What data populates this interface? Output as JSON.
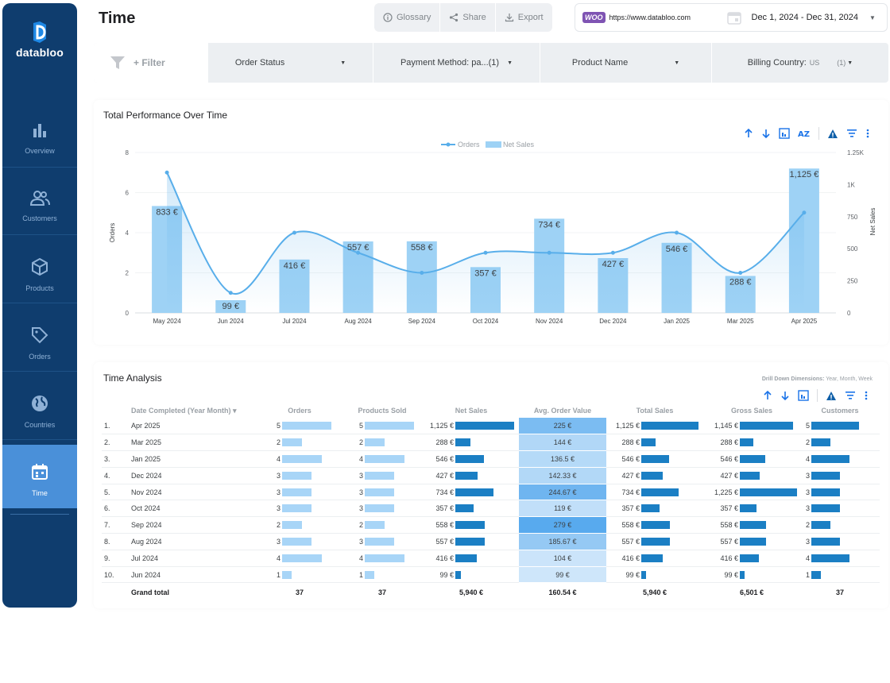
{
  "brand": {
    "name": "databloo"
  },
  "nav": [
    {
      "label": "Overview",
      "icon": "bar-chart-icon",
      "active": false
    },
    {
      "label": "Customers",
      "icon": "users-icon",
      "active": false
    },
    {
      "label": "Products",
      "icon": "box-icon",
      "active": false
    },
    {
      "label": "Orders",
      "icon": "tag-icon",
      "active": false
    },
    {
      "label": "Countries",
      "icon": "globe-icon",
      "active": false
    },
    {
      "label": "Time",
      "icon": "calendar-icon",
      "active": true
    }
  ],
  "header": {
    "title": "Time",
    "glossary": "Glossary",
    "share": "Share",
    "export": "Export",
    "store_badge": "WOO",
    "url": "https://www.databloo.com",
    "date_range": "Dec 1, 2024 - Dec 31, 2024"
  },
  "filters": {
    "add_label": "+ Filter",
    "order_status": "Order Status",
    "payment_method": "Payment Method: pa...(1)",
    "product_name": "Product Name",
    "billing_country": "Billing Country:",
    "billing_country_value": "US",
    "billing_country_count": "(1)"
  },
  "performance": {
    "title": "Total Performance Over Time",
    "legend": {
      "orders": "Orders",
      "net_sales": "Net Sales"
    }
  },
  "chart_data": {
    "type": "bar",
    "title": "Total Performance Over Time",
    "categories": [
      "May 2024",
      "Jun 2024",
      "Jul 2024",
      "Aug 2024",
      "Sep 2024",
      "Oct 2024",
      "Nov 2024",
      "Dec 2024",
      "Jan 2025",
      "Mar 2025",
      "Apr 2025"
    ],
    "series": [
      {
        "name": "Net Sales",
        "type": "bar",
        "axis": "right",
        "values": [
          833,
          99,
          416,
          557,
          558,
          357,
          734,
          427,
          546,
          288,
          1125
        ],
        "labels": [
          "833 €",
          "99 €",
          "416 €",
          "557 €",
          "558 €",
          "357 €",
          "734 €",
          "427 €",
          "546 €",
          "288 €",
          "1,125 €"
        ]
      },
      {
        "name": "Orders",
        "type": "line",
        "axis": "left",
        "values": [
          7,
          1,
          4,
          3,
          2,
          3,
          3,
          3,
          4,
          2,
          5
        ]
      }
    ],
    "ylabel": "Orders",
    "y2label": "Net Sales",
    "ylim": [
      0,
      8
    ],
    "y2lim": [
      0,
      1250
    ],
    "yticks": [
      "0",
      "2",
      "4",
      "6",
      "8"
    ],
    "y2ticks": [
      "0",
      "250",
      "500",
      "750",
      "1K",
      "1.25K"
    ],
    "legend": "top-center",
    "colors": {
      "bars": "#9ed2f5",
      "line": "#58aeea"
    }
  },
  "analysis": {
    "title": "Time Analysis",
    "drill_label": "Drill Down Dimensions:",
    "drill_value": "Year, Month, Week",
    "columns": [
      "Date Completed (Year Month)",
      "Orders",
      "Products Sold",
      "Net Sales",
      "Avg. Order Value",
      "Total Sales",
      "Gross Sales",
      "Customers"
    ],
    "sort_marker": "▾",
    "rows": [
      {
        "idx": "1.",
        "date": "Apr 2025",
        "orders": 5,
        "products": 5,
        "net": 1125,
        "net_label": "1,125 €",
        "aov": 225,
        "aov_label": "225 €",
        "total": 1125,
        "total_label": "1,125 €",
        "gross": 1145,
        "gross_label": "1,145 €",
        "customers": 5
      },
      {
        "idx": "2.",
        "date": "Mar 2025",
        "orders": 2,
        "products": 2,
        "net": 288,
        "net_label": "288 €",
        "aov": 144,
        "aov_label": "144 €",
        "total": 288,
        "total_label": "288 €",
        "gross": 288,
        "gross_label": "288 €",
        "customers": 2
      },
      {
        "idx": "3.",
        "date": "Jan 2025",
        "orders": 4,
        "products": 4,
        "net": 546,
        "net_label": "546 €",
        "aov": 136.5,
        "aov_label": "136.5 €",
        "total": 546,
        "total_label": "546 €",
        "gross": 546,
        "gross_label": "546 €",
        "customers": 4
      },
      {
        "idx": "4.",
        "date": "Dec 2024",
        "orders": 3,
        "products": 3,
        "net": 427,
        "net_label": "427 €",
        "aov": 142.33,
        "aov_label": "142.33 €",
        "total": 427,
        "total_label": "427 €",
        "gross": 427,
        "gross_label": "427 €",
        "customers": 3
      },
      {
        "idx": "5.",
        "date": "Nov 2024",
        "orders": 3,
        "products": 3,
        "net": 734,
        "net_label": "734 €",
        "aov": 244.67,
        "aov_label": "244.67 €",
        "total": 734,
        "total_label": "734 €",
        "gross": 1225,
        "gross_label": "1,225 €",
        "customers": 3
      },
      {
        "idx": "6.",
        "date": "Oct 2024",
        "orders": 3,
        "products": 3,
        "net": 357,
        "net_label": "357 €",
        "aov": 119,
        "aov_label": "119 €",
        "total": 357,
        "total_label": "357 €",
        "gross": 357,
        "gross_label": "357 €",
        "customers": 3
      },
      {
        "idx": "7.",
        "date": "Sep 2024",
        "orders": 2,
        "products": 2,
        "net": 558,
        "net_label": "558 €",
        "aov": 279,
        "aov_label": "279 €",
        "total": 558,
        "total_label": "558 €",
        "gross": 558,
        "gross_label": "558 €",
        "customers": 2
      },
      {
        "idx": "8.",
        "date": "Aug 2024",
        "orders": 3,
        "products": 3,
        "net": 557,
        "net_label": "557 €",
        "aov": 185.67,
        "aov_label": "185.67 €",
        "total": 557,
        "total_label": "557 €",
        "gross": 557,
        "gross_label": "557 €",
        "customers": 3
      },
      {
        "idx": "9.",
        "date": "Jul 2024",
        "orders": 4,
        "products": 4,
        "net": 416,
        "net_label": "416 €",
        "aov": 104,
        "aov_label": "104 €",
        "total": 416,
        "total_label": "416 €",
        "gross": 416,
        "gross_label": "416 €",
        "customers": 4
      },
      {
        "idx": "10.",
        "date": "Jun 2024",
        "orders": 1,
        "products": 1,
        "net": 99,
        "net_label": "99 €",
        "aov": 99,
        "aov_label": "99 €",
        "total": 99,
        "total_label": "99 €",
        "gross": 99,
        "gross_label": "99 €",
        "customers": 1
      }
    ],
    "totals": {
      "label": "Grand total",
      "orders": "37",
      "products": "37",
      "net": "5,940 €",
      "aov": "160.54 €",
      "total": "5,940 €",
      "gross": "6,501 €",
      "customers": "37"
    },
    "colors": {
      "light_bar": "#a8d5f7",
      "dark_bar": "#1b7fc4"
    }
  }
}
